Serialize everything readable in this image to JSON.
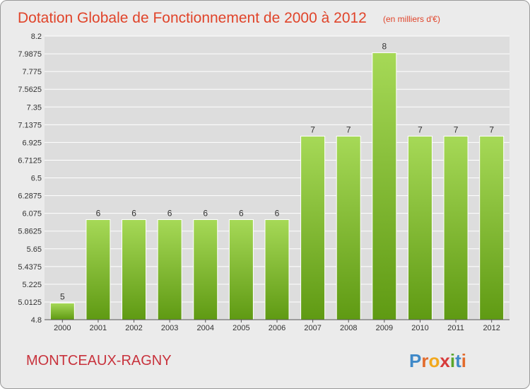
{
  "chart_data": {
    "type": "bar",
    "title": "Dotation Globale de Fonctionnement de 2000 à 2012",
    "subtitle": "(en milliers d'€)",
    "categories": [
      "2000",
      "2001",
      "2002",
      "2003",
      "2004",
      "2005",
      "2006",
      "2007",
      "2008",
      "2009",
      "2010",
      "2011",
      "2012"
    ],
    "values": [
      5,
      6,
      6,
      6,
      6,
      6,
      6,
      7,
      7,
      8,
      7,
      7,
      7
    ],
    "value_labels": [
      "5",
      "6",
      "6",
      "6",
      "6",
      "6",
      "6",
      "7",
      "7",
      "8",
      "7",
      "7",
      "7"
    ],
    "y_ticks": [
      "8.2",
      "7.9875",
      "7.775",
      "7.5625",
      "7.35",
      "7.1375",
      "6.925",
      "6.7125",
      "6.5",
      "6.2875",
      "6.075",
      "5.8625",
      "5.65",
      "5.4375",
      "5.225",
      "5.0125",
      "4.8"
    ],
    "ylim": [
      4.8,
      8.2
    ],
    "grid": true,
    "colors": {
      "bar_light": "#a6d957",
      "bar_dark": "#5f9a13",
      "grid": "#ffffff",
      "title": "#e0442a"
    }
  },
  "commune": "MONTCEAUX-RAGNY",
  "logo": {
    "text": "Proxiti",
    "letters": [
      {
        "char": "P",
        "color": "#3f89c8"
      },
      {
        "char": "r",
        "color": "#e26a2c"
      },
      {
        "char": "o",
        "color": "#f2a81d"
      },
      {
        "char": "x",
        "color": "#d73b3b"
      },
      {
        "char": "i",
        "color": "#5aa62c"
      },
      {
        "char": "t",
        "color": "#3f89c8"
      },
      {
        "char": "i",
        "color": "#e26a2c"
      }
    ]
  }
}
